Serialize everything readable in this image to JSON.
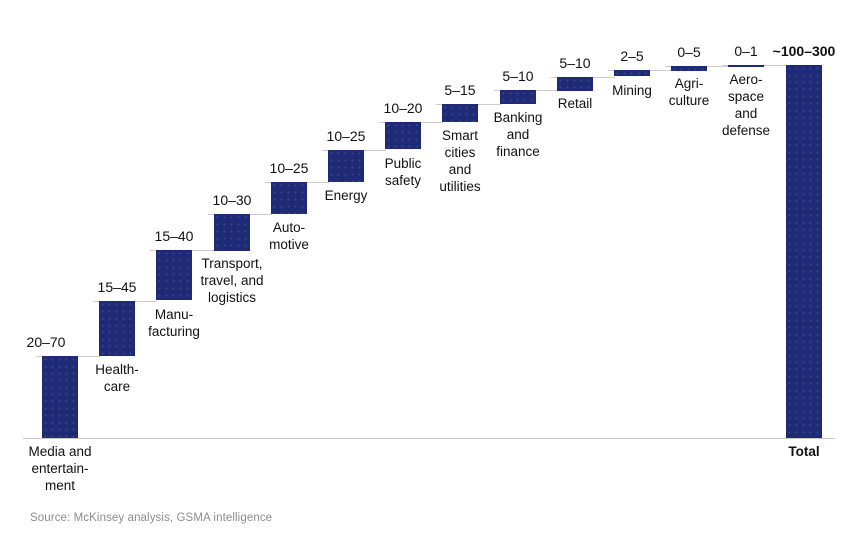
{
  "chart_data": {
    "type": "waterfall",
    "orientation": "vertical",
    "grid": false,
    "legend": false,
    "axis_line_color": "#c9c9c9",
    "connector_color": "#cccccc",
    "bar_color": "#1e2a75",
    "text_color": "#111111",
    "categories": [
      {
        "label": "Media and\nentertain-\nment",
        "range": "20–70",
        "low": 20,
        "high": 70
      },
      {
        "label": "Health-\ncare",
        "range": "15–45",
        "low": 15,
        "high": 45
      },
      {
        "label": "Manu-\nfacturing",
        "range": "15–40",
        "low": 15,
        "high": 40
      },
      {
        "label": "Transport,\ntravel, and\nlogistics",
        "range": "10–30",
        "low": 10,
        "high": 30
      },
      {
        "label": "Auto-\nmotive",
        "range": "10–25",
        "low": 10,
        "high": 25
      },
      {
        "label": "Energy",
        "range": "10–25",
        "low": 10,
        "high": 25
      },
      {
        "label": "Public\nsafety",
        "range": "10–20",
        "low": 10,
        "high": 20
      },
      {
        "label": "Smart\ncities\nand\nutilities",
        "range": "5–15",
        "low": 5,
        "high": 15
      },
      {
        "label": "Banking\nand\nfinance",
        "range": "5–10",
        "low": 5,
        "high": 10
      },
      {
        "label": "Retail",
        "range": "5–10",
        "low": 5,
        "high": 10
      },
      {
        "label": "Mining",
        "range": "2–5",
        "low": 2,
        "high": 5
      },
      {
        "label": "Agri-\nculture",
        "range": "0–5",
        "low": 0,
        "high": 5
      },
      {
        "label": "Aero-\nspace\nand\ndefense",
        "range": "0–1",
        "low": 0,
        "high": 1
      }
    ],
    "total": {
      "label": "Total",
      "range": "~100–300",
      "low": 100,
      "high": 300
    },
    "source": "Source: McKinsey analysis, GSMA intelligence"
  }
}
